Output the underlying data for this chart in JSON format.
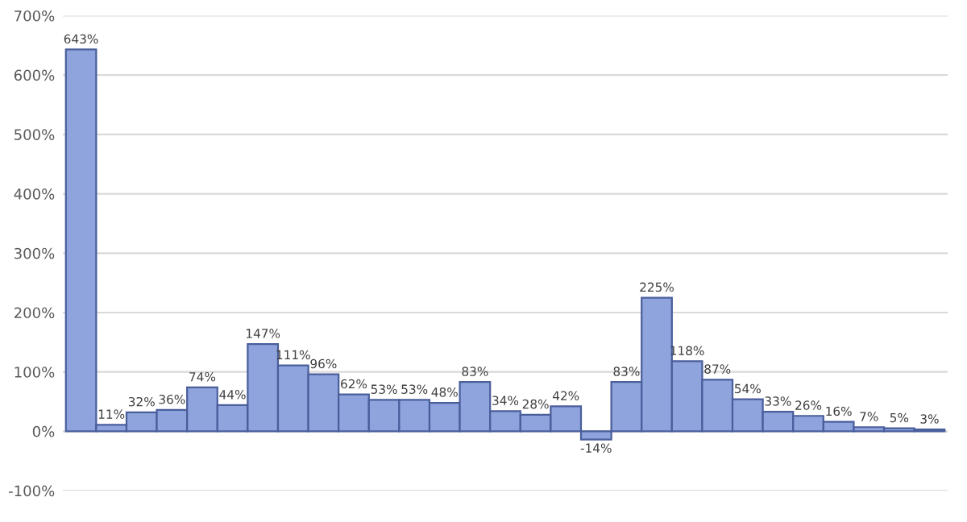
{
  "chart_data": {
    "type": "bar",
    "categories": [
      null,
      null,
      null,
      null,
      null,
      null,
      null,
      null,
      null,
      null,
      null,
      null,
      null,
      null,
      null,
      null,
      null,
      null,
      null,
      null,
      null,
      null,
      null,
      null,
      null,
      null,
      null,
      null,
      null
    ],
    "values": [
      643,
      11,
      32,
      36,
      74,
      44,
      147,
      111,
      96,
      62,
      53,
      53,
      48,
      83,
      34,
      28,
      42,
      -14,
      83,
      225,
      118,
      87,
      54,
      33,
      26,
      16,
      7,
      5,
      3
    ],
    "value_labels": [
      "643%",
      "11%",
      "32%",
      "36%",
      "74%",
      "44%",
      "147%",
      "111%",
      "96%",
      "62%",
      "53%",
      "53%",
      "48%",
      "83%",
      "34%",
      "28%",
      "42%",
      "-14%",
      "83%",
      "225%",
      "118%",
      "87%",
      "54%",
      "33%",
      "26%",
      "16%",
      "7%",
      "5%",
      "3%"
    ],
    "color": "#8fa4dc",
    "ylim": [
      -100,
      700
    ],
    "yticks": [
      {
        "value": -100,
        "label": "-100%"
      },
      {
        "value": 0,
        "label": "0%"
      },
      {
        "value": 100,
        "label": "100%"
      },
      {
        "value": 200,
        "label": "200%"
      },
      {
        "value": 300,
        "label": "300%"
      },
      {
        "value": 400,
        "label": "400%"
      },
      {
        "value": 500,
        "label": "500%"
      },
      {
        "value": 600,
        "label": "600%"
      },
      {
        "value": 700,
        "label": "700%"
      }
    ],
    "grid": "y"
  }
}
